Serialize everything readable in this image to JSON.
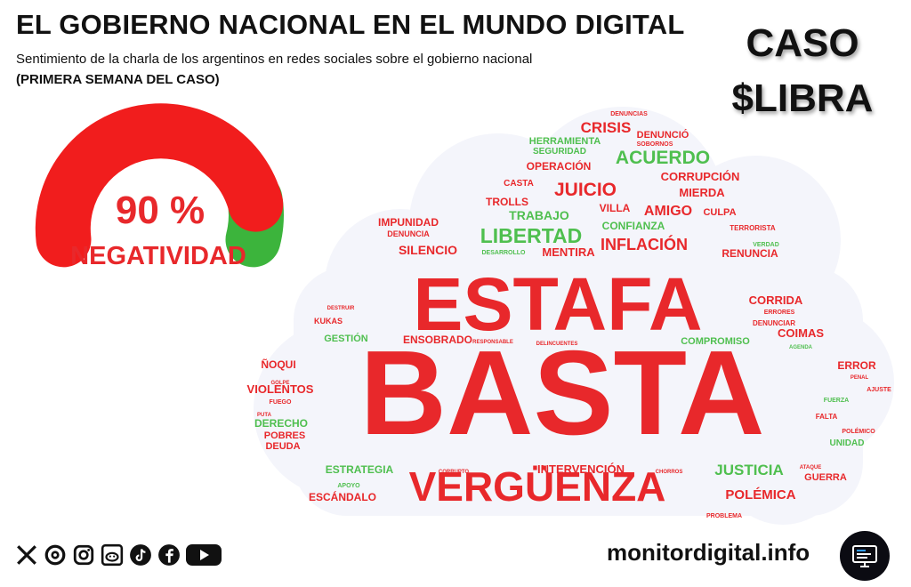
{
  "header": {
    "title": "EL GOBIERNO NACIONAL EN EL MUNDO DIGITAL",
    "subtitle": "Sentimiento de la charla de los argentinos en redes sociales sobre el gobierno nacional",
    "period": "(PRIMERA SEMANA DEL CASO)"
  },
  "case": {
    "line1": "CASO",
    "line2": "$LIBRA"
  },
  "gauge": {
    "value_text": "90 %",
    "label": "NEGATIVIDAD",
    "negative_fraction": 0.9,
    "negative_color": "#f11d1d",
    "positive_color": "#3cb43c"
  },
  "colors": {
    "negative": "#e8282b",
    "positive": "#4fbf4f",
    "cloud": "#f4f5fb"
  },
  "word_cloud": [
    {
      "text": "DENUNCIAS",
      "c": "neg"
    },
    {
      "text": "CRISIS",
      "c": "neg"
    },
    {
      "text": "DENUNCIÓ",
      "c": "neg"
    },
    {
      "text": "HERRAMIENTA",
      "c": "pos"
    },
    {
      "text": "SOBORNOS",
      "c": "neg"
    },
    {
      "text": "SEGURIDAD",
      "c": "pos"
    },
    {
      "text": "ACUERDO",
      "c": "pos"
    },
    {
      "text": "OPERACIÓN",
      "c": "neg"
    },
    {
      "text": "CORRUPCIÓN",
      "c": "neg"
    },
    {
      "text": "CASTA",
      "c": "neg"
    },
    {
      "text": "JUICIO",
      "c": "neg"
    },
    {
      "text": "MIERDA",
      "c": "neg"
    },
    {
      "text": "TROLLS",
      "c": "neg"
    },
    {
      "text": "TRABAJO",
      "c": "pos"
    },
    {
      "text": "VILLA",
      "c": "neg"
    },
    {
      "text": "AMIGO",
      "c": "neg"
    },
    {
      "text": "CULPA",
      "c": "neg"
    },
    {
      "text": "IMPUNIDAD",
      "c": "neg"
    },
    {
      "text": "CONFIANZA",
      "c": "pos"
    },
    {
      "text": "DENUNCIA",
      "c": "neg"
    },
    {
      "text": "LIBERTAD",
      "c": "pos"
    },
    {
      "text": "TERRORISTA",
      "c": "neg"
    },
    {
      "text": "INFLACIÓN",
      "c": "neg"
    },
    {
      "text": "SILENCIO",
      "c": "neg"
    },
    {
      "text": "VERDAD",
      "c": "pos"
    },
    {
      "text": "DESARROLLO",
      "c": "pos"
    },
    {
      "text": "MENTIRA",
      "c": "neg"
    },
    {
      "text": "RENUNCIA",
      "c": "neg"
    },
    {
      "text": "ESTAFA",
      "c": "neg"
    },
    {
      "text": "CORRIDA",
      "c": "neg"
    },
    {
      "text": "DESTRUIR",
      "c": "neg"
    },
    {
      "text": "ERRORES",
      "c": "neg"
    },
    {
      "text": "KUKAS",
      "c": "neg"
    },
    {
      "text": "DENUNCIAR",
      "c": "neg"
    },
    {
      "text": "COIMAS",
      "c": "neg"
    },
    {
      "text": "GESTIÓN",
      "c": "pos"
    },
    {
      "text": "ENSOBRADO",
      "c": "neg"
    },
    {
      "text": "RESPONSABLE",
      "c": "neg"
    },
    {
      "text": "DELINCUENTES",
      "c": "neg"
    },
    {
      "text": "COMPROMISO",
      "c": "pos"
    },
    {
      "text": "AGENDA",
      "c": "pos"
    },
    {
      "text": "ÑOQUI",
      "c": "neg"
    },
    {
      "text": "BASTA",
      "c": "neg"
    },
    {
      "text": "ERROR",
      "c": "neg"
    },
    {
      "text": "PENAL",
      "c": "neg"
    },
    {
      "text": "GOLPE",
      "c": "neg"
    },
    {
      "text": "AJUSTE",
      "c": "neg"
    },
    {
      "text": "VIOLENTOS",
      "c": "neg"
    },
    {
      "text": "FUEGO",
      "c": "neg"
    },
    {
      "text": "FUERZA",
      "c": "pos"
    },
    {
      "text": "PUTA",
      "c": "neg"
    },
    {
      "text": "FALTA",
      "c": "neg"
    },
    {
      "text": "DERECHO",
      "c": "pos"
    },
    {
      "text": "POBRES",
      "c": "neg"
    },
    {
      "text": "POLÉMICO",
      "c": "neg"
    },
    {
      "text": "DEUDA",
      "c": "neg"
    },
    {
      "text": "UNIDAD",
      "c": "pos"
    },
    {
      "text": "ATAQUE",
      "c": "neg"
    },
    {
      "text": "ESTRATEGIA",
      "c": "pos"
    },
    {
      "text": "CORRUPTO",
      "c": "neg"
    },
    {
      "text": "INTERVENCIÓN",
      "c": "neg"
    },
    {
      "text": "CHORROS",
      "c": "neg"
    },
    {
      "text": "JUSTICIA",
      "c": "pos"
    },
    {
      "text": "GUERRA",
      "c": "neg"
    },
    {
      "text": "APOYO",
      "c": "pos"
    },
    {
      "text": "ESCÁNDALO",
      "c": "neg"
    },
    {
      "text": "VERGÜENZA",
      "c": "neg"
    },
    {
      "text": "POLÉMICA",
      "c": "neg"
    },
    {
      "text": "PROBLEMA",
      "c": "neg"
    }
  ],
  "footer": {
    "site": "monitordigital.info",
    "social_icons": [
      "x-icon",
      "threads-icon",
      "instagram-icon",
      "reddit-icon",
      "tiktok-icon",
      "facebook-icon",
      "youtube-icon"
    ],
    "badge_icon": "monitor-icon"
  }
}
